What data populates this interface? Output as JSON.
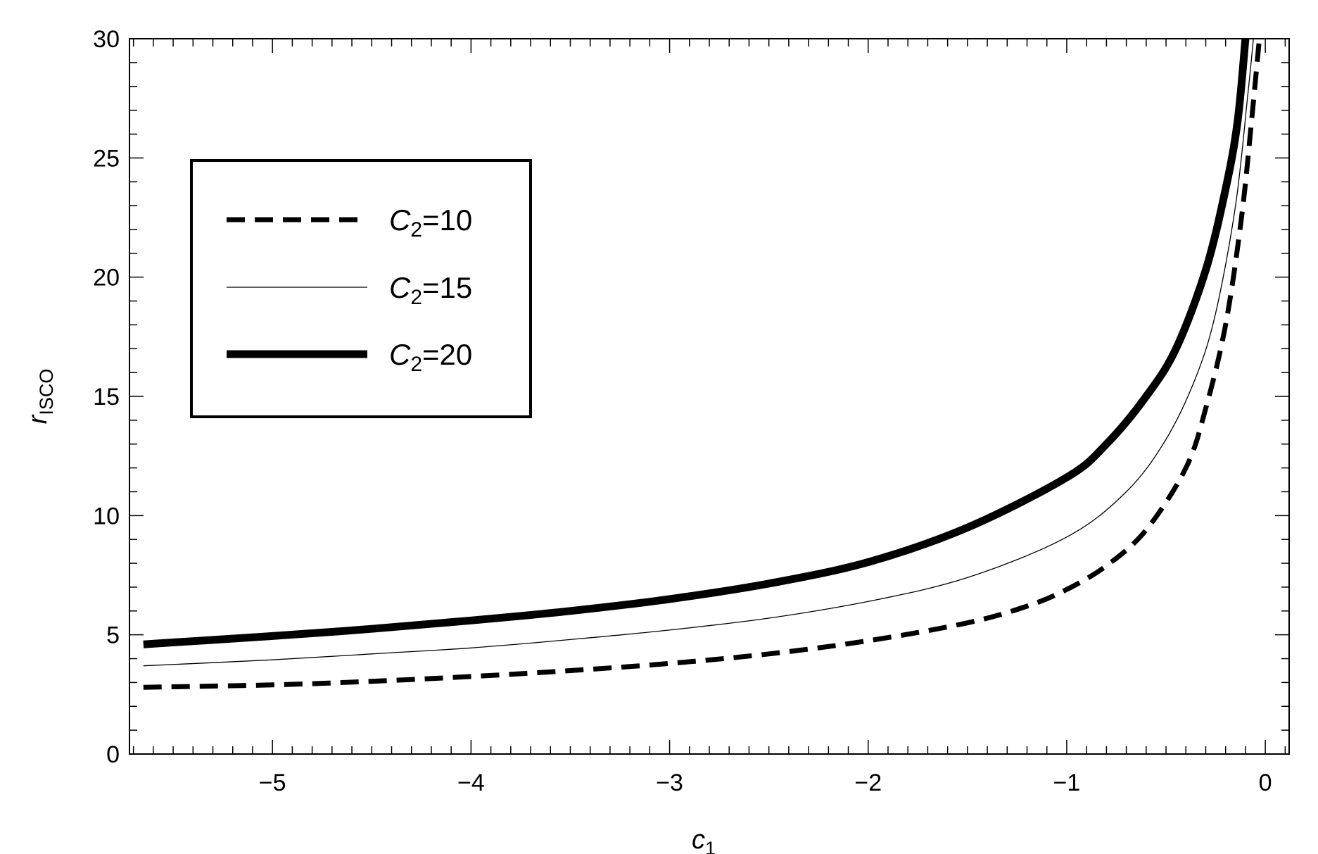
{
  "chart_data": {
    "type": "line",
    "xlabel": {
      "main": "c",
      "sub": "1"
    },
    "ylabel": {
      "main": "r",
      "sub": "ISCO"
    },
    "xlim": [
      -5.72,
      0.12
    ],
    "ylim": [
      0,
      30
    ],
    "x_ticks": [
      {
        "value": -5,
        "label": "−5"
      },
      {
        "value": -4,
        "label": "−4"
      },
      {
        "value": -3,
        "label": "−3"
      },
      {
        "value": -2,
        "label": "−2"
      },
      {
        "value": -1,
        "label": "−1"
      },
      {
        "value": 0,
        "label": "0"
      }
    ],
    "y_ticks": [
      {
        "value": 0,
        "label": "0"
      },
      {
        "value": 5,
        "label": "5"
      },
      {
        "value": 10,
        "label": "10"
      },
      {
        "value": 15,
        "label": "15"
      },
      {
        "value": 20,
        "label": "20"
      },
      {
        "value": 25,
        "label": "25"
      },
      {
        "value": 30,
        "label": "30"
      }
    ],
    "grid": false,
    "legend_position": "upper-left",
    "series": [
      {
        "name": "C2=10",
        "legend": {
          "var": "C",
          "sub": "2",
          "rest": "=10"
        },
        "style": "dashed",
        "color": "#000000",
        "points": [
          [
            -5.65,
            2.8
          ],
          [
            -5.0,
            2.9
          ],
          [
            -4.5,
            3.05
          ],
          [
            -4.0,
            3.25
          ],
          [
            -3.5,
            3.5
          ],
          [
            -3.0,
            3.8
          ],
          [
            -2.5,
            4.2
          ],
          [
            -2.0,
            4.75
          ],
          [
            -1.5,
            5.5
          ],
          [
            -1.2,
            6.2
          ],
          [
            -1.0,
            6.9
          ],
          [
            -0.8,
            7.9
          ],
          [
            -0.6,
            9.4
          ],
          [
            -0.4,
            12.0
          ],
          [
            -0.3,
            14.5
          ],
          [
            -0.2,
            18.0
          ],
          [
            -0.12,
            22.5
          ],
          [
            -0.07,
            26.5
          ],
          [
            -0.03,
            30.0
          ]
        ]
      },
      {
        "name": "C2=15",
        "legend": {
          "var": "C",
          "sub": "2",
          "rest": "=15"
        },
        "style": "thin",
        "color": "#000000",
        "points": [
          [
            -5.65,
            3.7
          ],
          [
            -5.0,
            3.95
          ],
          [
            -4.5,
            4.2
          ],
          [
            -4.0,
            4.45
          ],
          [
            -3.5,
            4.8
          ],
          [
            -3.0,
            5.2
          ],
          [
            -2.5,
            5.7
          ],
          [
            -2.0,
            6.4
          ],
          [
            -1.5,
            7.4
          ],
          [
            -1.0,
            9.1
          ],
          [
            -0.7,
            11.0
          ],
          [
            -0.5,
            13.2
          ],
          [
            -0.35,
            15.8
          ],
          [
            -0.25,
            18.5
          ],
          [
            -0.15,
            23.0
          ],
          [
            -0.09,
            27.5
          ],
          [
            -0.06,
            30.0
          ]
        ]
      },
      {
        "name": "C2=20",
        "legend": {
          "var": "C",
          "sub": "2",
          "rest": "=20"
        },
        "style": "thick",
        "color": "#000000",
        "points": [
          [
            -5.65,
            4.6
          ],
          [
            -5.0,
            4.95
          ],
          [
            -4.5,
            5.25
          ],
          [
            -4.0,
            5.6
          ],
          [
            -3.5,
            6.0
          ],
          [
            -3.0,
            6.5
          ],
          [
            -2.5,
            7.15
          ],
          [
            -2.0,
            8.05
          ],
          [
            -1.5,
            9.5
          ],
          [
            -1.0,
            11.6
          ],
          [
            -0.8,
            13.0
          ],
          [
            -0.6,
            15.0
          ],
          [
            -0.45,
            17.0
          ],
          [
            -0.3,
            20.3
          ],
          [
            -0.2,
            23.7
          ],
          [
            -0.14,
            26.5
          ],
          [
            -0.1,
            30.0
          ]
        ]
      }
    ]
  }
}
